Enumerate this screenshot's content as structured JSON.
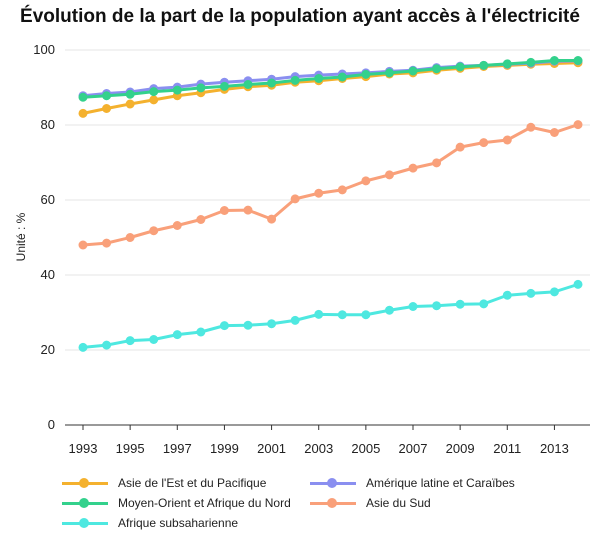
{
  "chart_data": {
    "type": "line",
    "title": "Évolution de la part de la population ayant accès à l'électricité",
    "ylabel": "Unité : %",
    "xlabel": "",
    "x": [
      1993,
      1994,
      1995,
      1996,
      1997,
      1998,
      1999,
      2000,
      2001,
      2002,
      2003,
      2004,
      2005,
      2006,
      2007,
      2008,
      2009,
      2010,
      2011,
      2012,
      2013,
      2014
    ],
    "x_tick_labels": [
      "1993",
      "1995",
      "1997",
      "1999",
      "2001",
      "2003",
      "2005",
      "2007",
      "2009",
      "2011",
      "2013"
    ],
    "x_tick_values": [
      1993,
      1995,
      1997,
      1999,
      2001,
      2003,
      2005,
      2007,
      2009,
      2011,
      2013
    ],
    "y_tick_labels": [
      "0",
      "20",
      "40",
      "60",
      "80",
      "100"
    ],
    "y_tick_values": [
      0,
      20,
      40,
      60,
      80,
      100
    ],
    "ylim": [
      0,
      100
    ],
    "xlim": [
      1993,
      2014
    ],
    "grid": "horizontal",
    "legend_position": "bottom",
    "series": [
      {
        "name": "Asie de l'Est et du Pacifique",
        "color": "#f4b12e",
        "values": [
          83.1,
          84.4,
          85.6,
          86.7,
          87.8,
          88.6,
          89.5,
          90.2,
          90.6,
          91.4,
          91.8,
          92.4,
          92.9,
          93.6,
          93.9,
          94.6,
          95.1,
          95.6,
          95.9,
          96.2,
          96.4,
          96.6
        ]
      },
      {
        "name": "Amérique latine et Caraïbes",
        "color": "#8a8ff0",
        "values": [
          87.8,
          88.4,
          88.8,
          89.7,
          90.1,
          90.9,
          91.4,
          91.8,
          92.2,
          92.9,
          93.3,
          93.6,
          93.9,
          94.3,
          94.6,
          95.3,
          95.7,
          95.9,
          96.2,
          96.5,
          97.0,
          97.1
        ]
      },
      {
        "name": "Moyen-Orient et Afrique du Nord",
        "color": "#33d18c",
        "values": [
          87.4,
          87.8,
          88.2,
          88.9,
          89.3,
          89.9,
          90.3,
          90.8,
          91.2,
          91.9,
          92.4,
          92.8,
          93.5,
          93.9,
          94.4,
          95.0,
          95.5,
          95.9,
          96.3,
          96.7,
          97.2,
          97.2
        ]
      },
      {
        "name": "Asie du Sud",
        "color": "#f9a07a",
        "values": [
          48.0,
          48.5,
          50.0,
          51.8,
          53.2,
          54.8,
          57.2,
          57.3,
          54.9,
          60.3,
          61.8,
          62.7,
          65.1,
          66.7,
          68.5,
          69.9,
          74.1,
          75.3,
          76.0,
          79.4,
          78.0,
          80.1
        ]
      },
      {
        "name": "Afrique subsaharienne",
        "color": "#4ee8e0",
        "values": [
          20.7,
          21.3,
          22.5,
          22.8,
          24.1,
          24.8,
          26.5,
          26.6,
          27.0,
          27.9,
          29.5,
          29.4,
          29.4,
          30.6,
          31.6,
          31.8,
          32.2,
          32.3,
          34.6,
          35.1,
          35.5,
          37.5
        ]
      }
    ]
  }
}
